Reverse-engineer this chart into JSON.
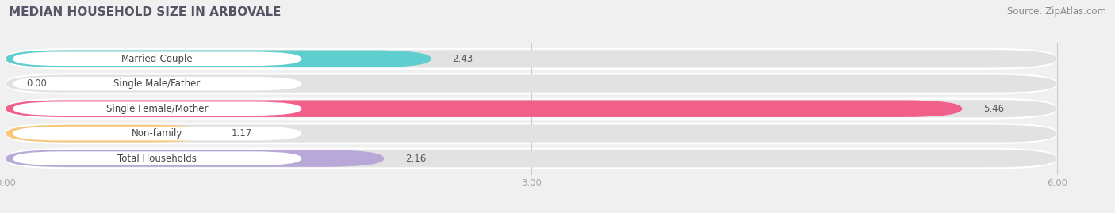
{
  "title": "MEDIAN HOUSEHOLD SIZE IN ARBOVALE",
  "source": "Source: ZipAtlas.com",
  "categories": [
    "Married-Couple",
    "Single Male/Father",
    "Single Female/Mother",
    "Non-family",
    "Total Households"
  ],
  "values": [
    2.43,
    0.0,
    5.46,
    1.17,
    2.16
  ],
  "bar_colors": [
    "#5ecece",
    "#a8b8e8",
    "#f0608a",
    "#f8c87a",
    "#b8a8d8"
  ],
  "xlim": [
    0,
    6.3
  ],
  "xticks": [
    0.0,
    3.0,
    6.0
  ],
  "xtick_labels": [
    "0.00",
    "3.00",
    "6.00"
  ],
  "background_color": "#f0f0f0",
  "bar_background_color": "#e2e2e2",
  "title_fontsize": 11,
  "source_fontsize": 8.5,
  "bar_height": 0.68,
  "figsize": [
    14.06,
    2.69
  ],
  "dpi": 100
}
